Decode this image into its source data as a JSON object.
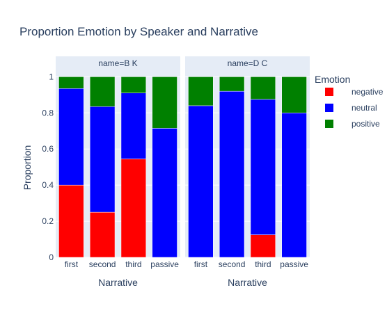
{
  "chart_data": {
    "type": "bar",
    "stacked": true,
    "title": "Proportion Emotion by Speaker and Narrative",
    "ylabel": "Proportion",
    "xlabel": "Narrative",
    "ylim": [
      0,
      1.04
    ],
    "yticks": [
      "0",
      "0.2",
      "0.4",
      "0.6",
      "0.8",
      "1"
    ],
    "ytick_values": [
      0,
      0.2,
      0.4,
      0.6,
      0.8,
      1
    ],
    "categories": [
      "first",
      "second",
      "third",
      "passive"
    ],
    "legend": {
      "title": "Emotion",
      "position": "right",
      "entries": [
        {
          "name": "negative",
          "color": "#ff0000"
        },
        {
          "name": "neutral",
          "color": "#0000ff"
        },
        {
          "name": "positive",
          "color": "#008000"
        }
      ]
    },
    "facets": [
      {
        "label": "name=B K",
        "series": [
          {
            "name": "negative",
            "values": [
              0.4,
              0.25,
              0.545,
              0.0
            ]
          },
          {
            "name": "neutral",
            "values": [
              0.535,
              0.585,
              0.365,
              0.715
            ]
          },
          {
            "name": "positive",
            "values": [
              0.065,
              0.165,
              0.09,
              0.285
            ]
          }
        ]
      },
      {
        "label": "name=D C",
        "series": [
          {
            "name": "negative",
            "values": [
              0.0,
              0.0,
              0.125,
              0.0
            ]
          },
          {
            "name": "neutral",
            "values": [
              0.84,
              0.92,
              0.75,
              0.8
            ]
          },
          {
            "name": "positive",
            "values": [
              0.16,
              0.08,
              0.125,
              0.2
            ]
          }
        ]
      }
    ],
    "grid": true,
    "plot_bgcolor": "#e5ecf6"
  }
}
